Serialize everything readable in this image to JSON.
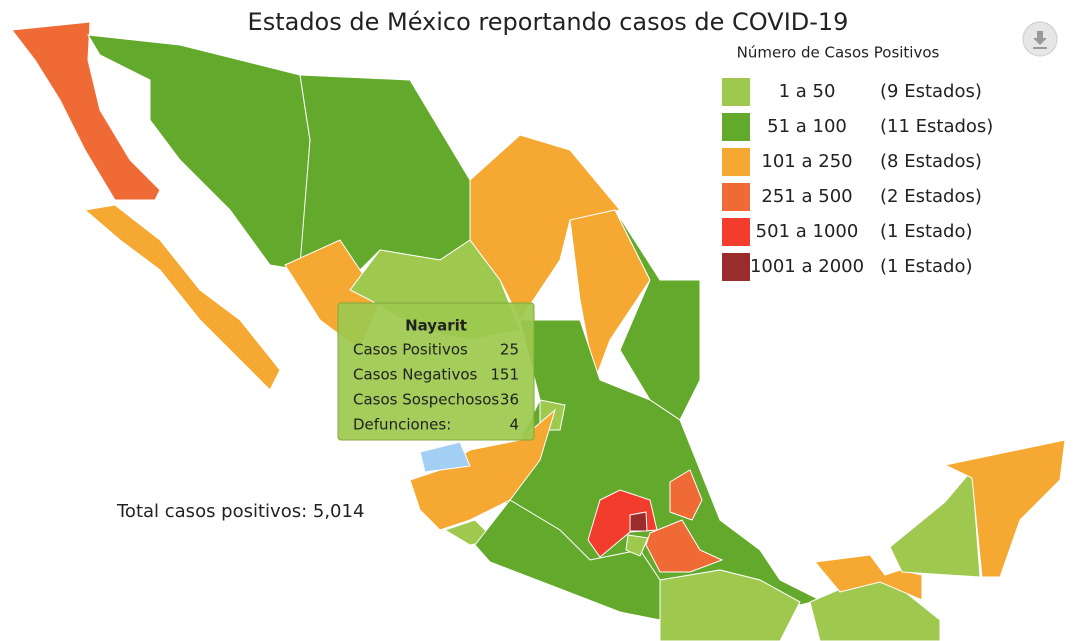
{
  "header": {
    "title": "Estados de México reportando casos de COVID-19"
  },
  "legend": {
    "title": "Número de Casos Positivos",
    "items": [
      {
        "range": "1 a 50",
        "count": "(9 Estados)",
        "color": "#9fc94e"
      },
      {
        "range": "51 a 100",
        "count": "(11 Estados)",
        "color": "#63a92b"
      },
      {
        "range": "101 a 250",
        "count": "(8 Estados)",
        "color": "#f6a932"
      },
      {
        "range": "251 a 500",
        "count": "(2 Estados)",
        "color": "#f06a35"
      },
      {
        "range": "501 a 1000",
        "count": "(1 Estado)",
        "color": "#f23d2d"
      },
      {
        "range": "1001 a 2000",
        "count": "(1 Estado)",
        "color": "#9b2c2c"
      }
    ]
  },
  "tooltip": {
    "title": "Nayarit",
    "highlight_color": "#a4cff5",
    "rows": [
      {
        "label": "Casos Positivos",
        "value": 25
      },
      {
        "label": "Casos Negativos",
        "value": 151
      },
      {
        "label": "Casos Sospechosos",
        "value": 36
      },
      {
        "label": "Defunciones:",
        "value": 4
      }
    ]
  },
  "total": "Total casos positivos: 5,014"
}
